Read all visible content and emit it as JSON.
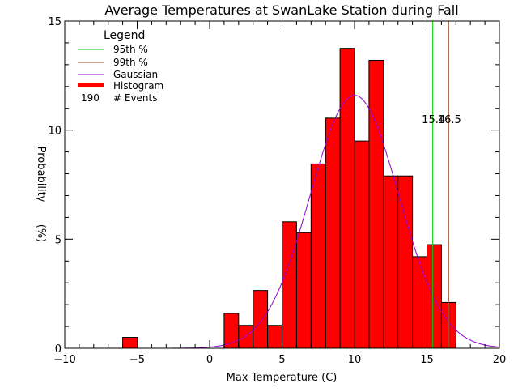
{
  "chart_data": {
    "type": "bar",
    "title": "Average Temperatures at SwanLake Station during Fall",
    "xlabel": "Max Temperature (C)",
    "ylabel": "Probability",
    "ylabel_unit": "(%)",
    "xlim": [
      -10,
      20
    ],
    "ylim": [
      0,
      15
    ],
    "x_ticks": [
      -10,
      -5,
      0,
      5,
      10,
      15,
      20
    ],
    "y_ticks": [
      0,
      5,
      10,
      15
    ],
    "bin_width": 1.0,
    "histogram": {
      "name": "Histogram",
      "color": "#ff0000",
      "bins": [
        {
          "x0": -6.0,
          "x1": -5.0,
          "value": 0.5
        },
        {
          "x0": 1.0,
          "x1": 2.0,
          "value": 1.6
        },
        {
          "x0": 2.0,
          "x1": 3.0,
          "value": 1.05
        },
        {
          "x0": 3.0,
          "x1": 4.0,
          "value": 2.65
        },
        {
          "x0": 4.0,
          "x1": 5.0,
          "value": 1.05
        },
        {
          "x0": 5.0,
          "x1": 6.0,
          "value": 5.8
        },
        {
          "x0": 6.0,
          "x1": 7.0,
          "value": 5.3
        },
        {
          "x0": 7.0,
          "x1": 8.0,
          "value": 8.45
        },
        {
          "x0": 8.0,
          "x1": 9.0,
          "value": 10.55
        },
        {
          "x0": 9.0,
          "x1": 10.0,
          "value": 13.75
        },
        {
          "x0": 10.0,
          "x1": 11.0,
          "value": 9.5
        },
        {
          "x0": 11.0,
          "x1": 12.0,
          "value": 13.2
        },
        {
          "x0": 12.0,
          "x1": 13.0,
          "value": 7.9
        },
        {
          "x0": 13.0,
          "x1": 14.0,
          "value": 7.9
        },
        {
          "x0": 14.0,
          "x1": 15.0,
          "value": 4.2
        },
        {
          "x0": 15.0,
          "x1": 16.0,
          "value": 4.75
        },
        {
          "x0": 16.0,
          "x1": 17.0,
          "value": 2.1
        }
      ]
    },
    "gaussian": {
      "name": "Gaussian",
      "color": "#9400d3",
      "mean": 10.0,
      "sigma": 3.05,
      "peak": 11.6
    },
    "percentiles": [
      {
        "name": "95th %",
        "value": 15.4,
        "label": "15.4",
        "color": "#00cc00"
      },
      {
        "name": "99th %",
        "value": 16.5,
        "label": "16.5",
        "color": "#a0522d"
      }
    ],
    "legend": {
      "title": "Legend",
      "placement": "top-left",
      "events_count": "190",
      "events_label": "# Events"
    }
  }
}
